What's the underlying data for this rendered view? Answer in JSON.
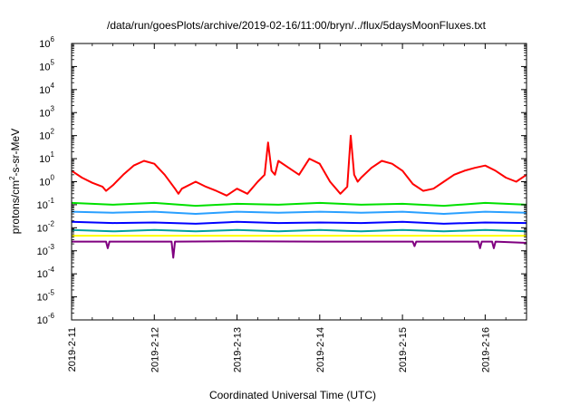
{
  "chart_data": {
    "type": "line",
    "title": "/data/run/goesPlots/archive/2019-02-16/11:00/bryn/../flux/5daysMoonFluxes.txt",
    "xlabel": "Coordinated Universal Time (UTC)",
    "ylabel_parts": [
      "protons/cm",
      "2",
      "-s-sr-MeV"
    ],
    "y_scale": "log",
    "ylim": [
      1e-06,
      1000000.0
    ],
    "y_ticks": [
      {
        "base": "10",
        "exp": "-6",
        "value": 1e-06
      },
      {
        "base": "10",
        "exp": "-5",
        "value": 1e-05
      },
      {
        "base": "10",
        "exp": "-4",
        "value": 0.0001
      },
      {
        "base": "10",
        "exp": "-3",
        "value": 0.001
      },
      {
        "base": "10",
        "exp": "-2",
        "value": 0.01
      },
      {
        "base": "10",
        "exp": "-1",
        "value": 0.1
      },
      {
        "base": "10",
        "exp": "0",
        "value": 1
      },
      {
        "base": "10",
        "exp": "1",
        "value": 10
      },
      {
        "base": "10",
        "exp": "2",
        "value": 100
      },
      {
        "base": "10",
        "exp": "3",
        "value": 1000
      },
      {
        "base": "10",
        "exp": "4",
        "value": 10000
      },
      {
        "base": "10",
        "exp": "5",
        "value": 100000
      },
      {
        "base": "10",
        "exp": "6",
        "value": 1000000
      }
    ],
    "x_ticks": [
      "2019-2-11",
      "2019-2-12",
      "2019-2-13",
      "2019-2-14",
      "2019-2-15",
      "2019-2-16"
    ],
    "x_range_days": [
      "2019-2-11",
      "2019-2-16 12:00"
    ],
    "grid": false,
    "legend": "none",
    "series": [
      {
        "color": "#ff0000",
        "x": [
          "2019-2-11 00:00",
          "2019-2-11 03:00",
          "2019-2-11 06:00",
          "2019-2-11 09:00",
          "2019-2-11 10:00",
          "2019-2-11 12:00",
          "2019-2-11 15:00",
          "2019-2-11 18:00",
          "2019-2-11 21:00",
          "2019-2-12 00:00",
          "2019-2-12 03:00",
          "2019-2-12 06:00",
          "2019-2-12 07:00",
          "2019-2-12 08:00",
          "2019-2-12 12:00",
          "2019-2-12 15:00",
          "2019-2-12 18:00",
          "2019-2-12 21:00",
          "2019-2-13 00:00",
          "2019-2-13 03:00",
          "2019-2-13 06:00",
          "2019-2-13 08:00",
          "2019-2-13 09:00",
          "2019-2-13 10:00",
          "2019-2-13 11:00",
          "2019-2-13 12:00",
          "2019-2-13 15:00",
          "2019-2-13 18:00",
          "2019-2-13 21:00",
          "2019-2-14 00:00",
          "2019-2-14 03:00",
          "2019-2-14 06:00",
          "2019-2-14 08:00",
          "2019-2-14 09:00",
          "2019-2-14 10:00",
          "2019-2-14 11:00",
          "2019-2-14 12:00",
          "2019-2-14 15:00",
          "2019-2-14 18:00",
          "2019-2-14 21:00",
          "2019-2-15 00:00",
          "2019-2-15 03:00",
          "2019-2-15 06:00",
          "2019-2-15 09:00",
          "2019-2-15 12:00",
          "2019-2-15 15:00",
          "2019-2-15 18:00",
          "2019-2-15 21:00",
          "2019-2-16 00:00",
          "2019-2-16 03:00",
          "2019-2-16 06:00",
          "2019-2-16 09:00",
          "2019-2-16 12:00"
        ],
        "y": [
          3,
          1.5,
          0.9,
          0.6,
          0.4,
          0.7,
          2,
          5,
          8,
          6,
          2,
          0.5,
          0.3,
          0.5,
          1,
          0.6,
          0.4,
          0.25,
          0.5,
          0.3,
          1,
          2,
          50,
          3,
          2,
          8,
          4,
          2,
          10,
          6,
          1,
          0.3,
          0.6,
          100,
          2,
          1,
          1.5,
          4,
          8,
          6,
          3,
          0.8,
          0.4,
          0.5,
          1,
          2,
          3,
          4,
          5,
          3,
          1.5,
          1,
          2
        ]
      },
      {
        "color": "#00e000",
        "x": [
          "2019-2-11 00:00",
          "2019-2-11 12:00",
          "2019-2-12 00:00",
          "2019-2-12 12:00",
          "2019-2-13 00:00",
          "2019-2-13 12:00",
          "2019-2-14 00:00",
          "2019-2-14 12:00",
          "2019-2-15 00:00",
          "2019-2-15 12:00",
          "2019-2-16 00:00",
          "2019-2-16 12:00"
        ],
        "y": [
          0.12,
          0.1,
          0.12,
          0.09,
          0.11,
          0.1,
          0.12,
          0.1,
          0.11,
          0.09,
          0.12,
          0.1
        ]
      },
      {
        "color": "#2aa0ff",
        "x": [
          "2019-2-11 00:00",
          "2019-2-11 12:00",
          "2019-2-12 00:00",
          "2019-2-12 12:00",
          "2019-2-13 00:00",
          "2019-2-13 12:00",
          "2019-2-14 00:00",
          "2019-2-14 12:00",
          "2019-2-15 00:00",
          "2019-2-15 12:00",
          "2019-2-16 00:00",
          "2019-2-16 12:00"
        ],
        "y": [
          0.05,
          0.045,
          0.05,
          0.04,
          0.05,
          0.045,
          0.05,
          0.045,
          0.05,
          0.04,
          0.05,
          0.045
        ]
      },
      {
        "color": "#0000ff",
        "x": [
          "2019-2-11 00:00",
          "2019-2-11 12:00",
          "2019-2-12 00:00",
          "2019-2-12 12:00",
          "2019-2-13 00:00",
          "2019-2-13 12:00",
          "2019-2-14 00:00",
          "2019-2-14 12:00",
          "2019-2-15 00:00",
          "2019-2-15 12:00",
          "2019-2-16 00:00",
          "2019-2-16 12:00"
        ],
        "y": [
          0.018,
          0.016,
          0.017,
          0.015,
          0.018,
          0.016,
          0.017,
          0.016,
          0.018,
          0.015,
          0.017,
          0.016
        ]
      },
      {
        "color": "#00a0a0",
        "x": [
          "2019-2-11 00:00",
          "2019-2-11 12:00",
          "2019-2-12 00:00",
          "2019-2-12 12:00",
          "2019-2-13 00:00",
          "2019-2-13 12:00",
          "2019-2-14 00:00",
          "2019-2-14 12:00",
          "2019-2-15 00:00",
          "2019-2-15 12:00",
          "2019-2-16 00:00",
          "2019-2-16 12:00"
        ],
        "y": [
          0.008,
          0.007,
          0.008,
          0.007,
          0.008,
          0.007,
          0.008,
          0.007,
          0.008,
          0.007,
          0.008,
          0.007
        ]
      },
      {
        "color": "#ffff00",
        "x": [
          "2019-2-11 00:00",
          "2019-2-16 12:00"
        ],
        "y": [
          0.0045,
          0.0045
        ]
      },
      {
        "color": "#800080",
        "x": [
          "2019-2-11 00:00",
          "2019-2-11 10:00",
          "2019-2-11 10:30",
          "2019-2-11 11:00",
          "2019-2-12 05:00",
          "2019-2-12 05:30",
          "2019-2-12 06:00",
          "2019-2-13 00:00",
          "2019-2-14 00:00",
          "2019-2-15 00:00",
          "2019-2-15 03:00",
          "2019-2-15 03:30",
          "2019-2-15 04:00",
          "2019-2-15 22:00",
          "2019-2-15 22:30",
          "2019-2-15 23:00",
          "2019-2-16 00:00",
          "2019-2-16 02:00",
          "2019-2-16 02:30",
          "2019-2-16 03:00",
          "2019-2-16 12:00"
        ],
        "y": [
          0.0025,
          0.0025,
          0.0013,
          0.0025,
          0.0025,
          0.0005,
          0.0025,
          0.0026,
          0.0025,
          0.0025,
          0.0025,
          0.0016,
          0.0025,
          0.0025,
          0.0013,
          0.0025,
          0.0025,
          0.0025,
          0.0013,
          0.0025,
          0.0022
        ]
      }
    ]
  }
}
